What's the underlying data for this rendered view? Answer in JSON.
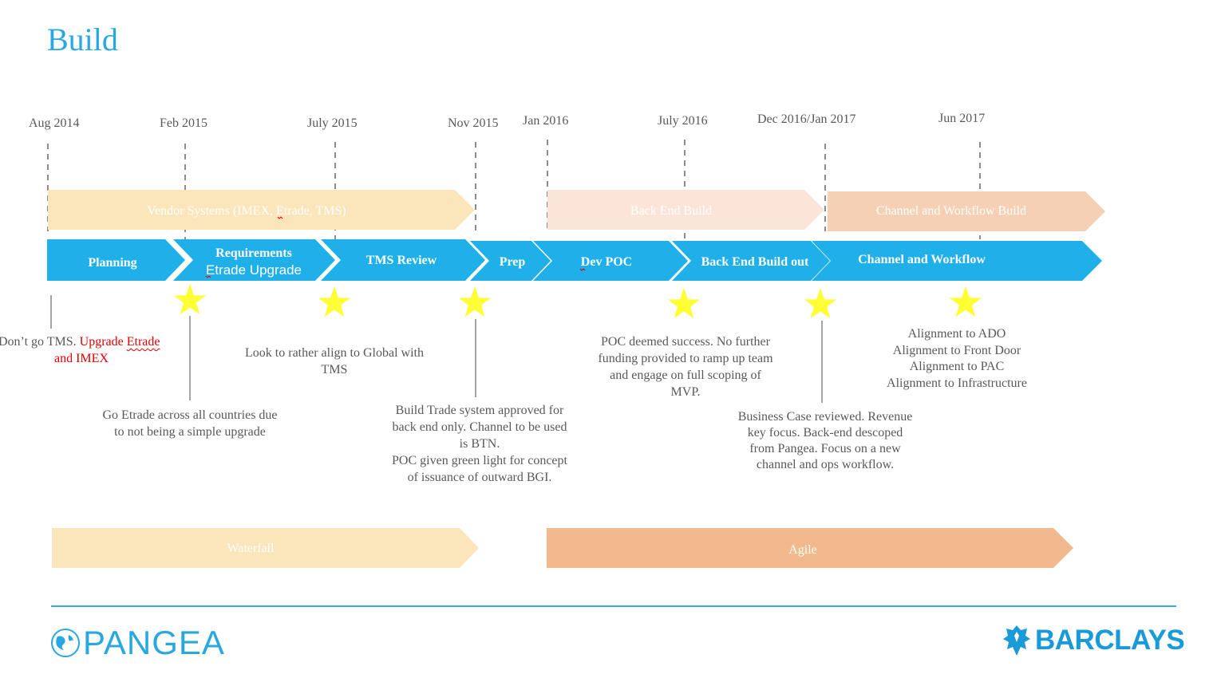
{
  "title": "Build",
  "dates": [
    "Aug 2014",
    "Feb 2015",
    "July 2015",
    "Nov 2015",
    "Jan 2016",
    "July 2016",
    "Dec 2016/Jan 2017",
    "Jun 2017"
  ],
  "tracks": {
    "vendor": "Vendor Systems (IMEX, Etrade, TMS)",
    "backend": "Back End Build",
    "channel": "Channel and Workflow Build"
  },
  "phases": {
    "planning": "Planning",
    "requirements_line1": "Requirements",
    "requirements_line2": "Etrade Upgrade",
    "tms_review": "TMS Review",
    "prep": "Prep",
    "dev_poc": "Dev POC",
    "backend_buildout": "Back End Build out",
    "channel_workflow": "Channel and Workflow"
  },
  "notes": {
    "n1_prefix": "Don’t go TMS. ",
    "n1_red_a": "Upgrade ",
    "n1_red_b": "Etrade",
    "n1_red_line2": "and IMEX",
    "n2_line1": "Go Etrade across all countries due",
    "n2_line2": "to not being a simple upgrade",
    "n3_line1": "Look to rather align to Global with",
    "n3_line2": "TMS",
    "n4_line1": "Build Trade system approved for",
    "n4_line2": "back end only. Channel to be used",
    "n4_line3": "is BTN.",
    "n4_line4": "POC given green light for concept",
    "n4_line5": "of issuance of outward BGI.",
    "n5_line1": "POC deemed success. No further",
    "n5_line2": "funding provided to ramp up team",
    "n5_line3": "and engage on full scoping of",
    "n5_line4": "MVP.",
    "n6_line1": "Business Case reviewed. Revenue",
    "n6_line2": "key focus. Back-end descoped",
    "n6_line3": "from Pangea. Focus on a new",
    "n6_line4": "channel and ops workflow.",
    "n7_line1": "Alignment to ADO",
    "n7_line2": "Alignment to Front Door",
    "n7_line3": "Alignment to PAC",
    "n7_line4": "Alignment to Infrastructure"
  },
  "methods": {
    "waterfall": "Waterfall",
    "agile": "Agile"
  },
  "logos": {
    "pangea": "PANGEA",
    "barclays": "BARCLAYS"
  },
  "colors": {
    "title": "#29a8e0",
    "phase_blue": "#1fb0ea",
    "vendor_track": "#fbe5bb",
    "backend_track": "#fbe5d8",
    "channel_track": "#f6d0b4",
    "waterfall": "#fbe5bb",
    "agile": "#f2b98c",
    "star": "#ffff33",
    "accent_red": "#e00000"
  }
}
